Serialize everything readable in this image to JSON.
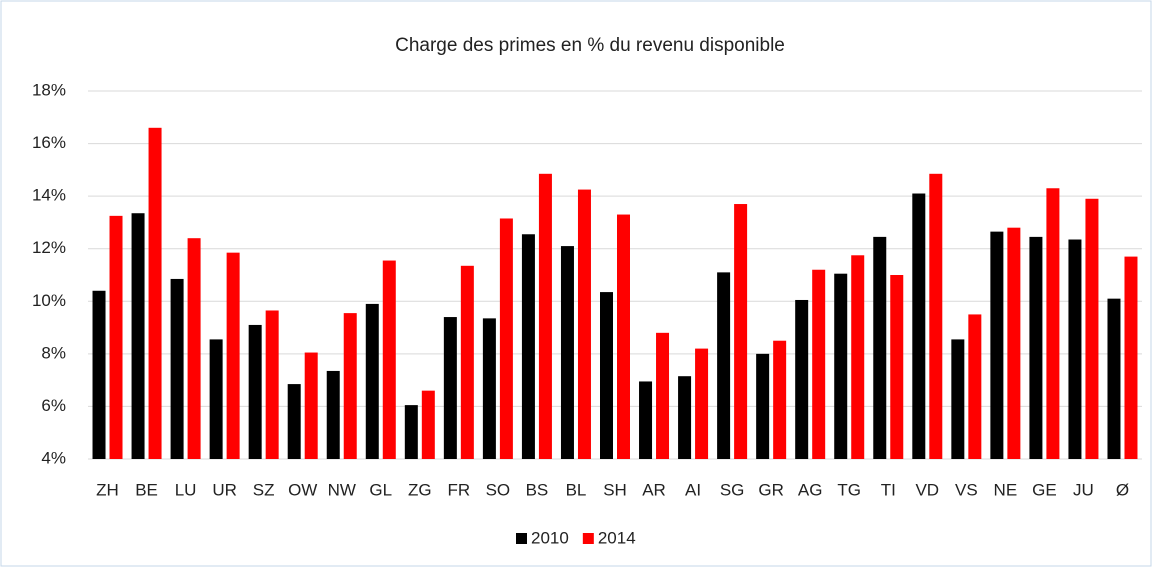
{
  "chart_data": {
    "type": "bar",
    "title": "Charge des primes en % du revenu disponible",
    "categories": [
      "ZH",
      "BE",
      "LU",
      "UR",
      "SZ",
      "OW",
      "NW",
      "GL",
      "ZG",
      "FR",
      "SO",
      "BS",
      "BL",
      "SH",
      "AR",
      "AI",
      "SG",
      "GR",
      "AG",
      "TG",
      "TI",
      "VD",
      "VS",
      "NE",
      "GE",
      "JU",
      "Ø"
    ],
    "series": [
      {
        "name": "2010",
        "color": "#000000",
        "values": [
          10.4,
          13.35,
          10.85,
          8.55,
          9.1,
          6.85,
          7.35,
          9.9,
          6.05,
          9.4,
          9.35,
          12.55,
          12.1,
          10.35,
          6.95,
          7.15,
          11.1,
          8.0,
          10.05,
          11.05,
          12.45,
          14.1,
          8.55,
          12.65,
          12.45,
          12.35,
          10.1
        ]
      },
      {
        "name": "2014",
        "color": "#ff0000",
        "values": [
          13.25,
          16.6,
          12.4,
          11.85,
          9.65,
          8.05,
          9.55,
          11.55,
          6.6,
          11.35,
          13.15,
          14.85,
          14.25,
          13.3,
          8.8,
          8.2,
          13.7,
          8.5,
          11.2,
          11.75,
          11.0,
          14.85,
          9.5,
          12.8,
          14.3,
          13.9,
          11.7
        ]
      }
    ],
    "ylim": [
      4,
      18
    ],
    "yticks": [
      {
        "value": 4,
        "label": "4%"
      },
      {
        "value": 6,
        "label": "6%"
      },
      {
        "value": 8,
        "label": "8%"
      },
      {
        "value": 10,
        "label": "10%"
      },
      {
        "value": 12,
        "label": "12%"
      },
      {
        "value": 14,
        "label": "14%"
      },
      {
        "value": 16,
        "label": "16%"
      },
      {
        "value": 18,
        "label": "18%"
      }
    ],
    "grid": true,
    "legend": "bottom"
  }
}
